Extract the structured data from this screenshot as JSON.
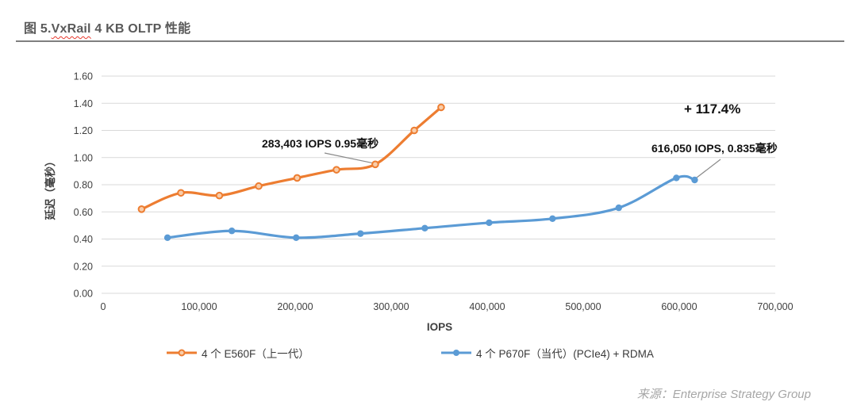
{
  "header": {
    "title_prefix": "图 5.",
    "title_product": "VxRail",
    "title_suffix": " 4 KB OLTP 性能"
  },
  "chart_data": {
    "type": "line",
    "title": "图 5.VxRail 4 KB OLTP 性能",
    "xlabel": "IOPS",
    "ylabel": "延迟（毫秒）",
    "xlim": [
      0,
      700000
    ],
    "ylim": [
      0,
      1.6
    ],
    "grid": true,
    "legend_position": "bottom",
    "gridline_color": "#d9d9d9",
    "x_ticks": [
      "0",
      "100,000",
      "200,000",
      "300,000",
      "400,000",
      "500,000",
      "600,000",
      "700,000"
    ],
    "y_ticks": [
      "0.00",
      "0.20",
      "0.40",
      "0.60",
      "0.80",
      "1.00",
      "1.20",
      "1.40",
      "1.60"
    ],
    "series": [
      {
        "name": "4 个 E560F（上一代）",
        "color": "#ED7D31",
        "marker": "ring",
        "marker_fill": "#F9CDA9",
        "points": [
          [
            40000,
            0.62
          ],
          [
            81000,
            0.74
          ],
          [
            121000,
            0.72
          ],
          [
            162000,
            0.79
          ],
          [
            202000,
            0.85
          ],
          [
            243000,
            0.91
          ],
          [
            283403,
            0.95
          ],
          [
            324000,
            1.2
          ],
          [
            352000,
            1.37
          ]
        ]
      },
      {
        "name": "4 个 P670F（当代）(PCIe4) + RDMA",
        "color": "#5B9BD5",
        "marker": "dot",
        "marker_fill": "#5B9BD5",
        "points": [
          [
            67000,
            0.41
          ],
          [
            134000,
            0.46
          ],
          [
            201000,
            0.41
          ],
          [
            268000,
            0.44
          ],
          [
            335000,
            0.48
          ],
          [
            402000,
            0.52
          ],
          [
            468000,
            0.55
          ],
          [
            537000,
            0.63
          ],
          [
            597000,
            0.85
          ],
          [
            616050,
            0.835
          ]
        ]
      }
    ],
    "annotations": [
      {
        "text": "283,403 IOPS 0.95毫秒",
        "anchor_point": [
          283403,
          0.95
        ]
      },
      {
        "text": "+ 117.4%"
      },
      {
        "text": "616,050 IOPS, 0.835毫秒",
        "anchor_point": [
          616050,
          0.835
        ]
      }
    ]
  },
  "footer": {
    "source_text": "来源：Enterprise Strategy Group"
  }
}
